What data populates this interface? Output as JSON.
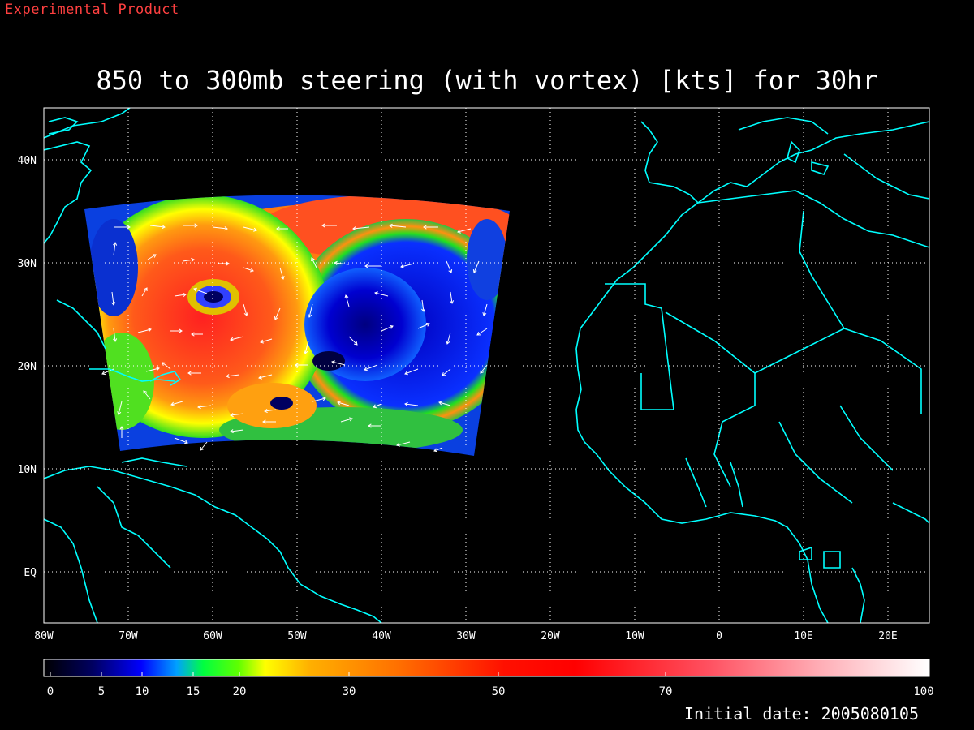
{
  "header": {
    "product_label": "Experimental Product",
    "title": "850 to 300mb steering (with vortex) [kts] for 30hr"
  },
  "map": {
    "lon_labels": [
      "80W",
      "70W",
      "60W",
      "50W",
      "40W",
      "30W",
      "20W",
      "10W",
      "0",
      "10E",
      "20E"
    ],
    "lat_labels": [
      "40N",
      "30N",
      "20N",
      "10N",
      "EQ"
    ],
    "coastline_color": "#00ffff",
    "grid_color": "#ffffff",
    "background_color": "#000000"
  },
  "colorbar": {
    "tick_labels": [
      "0",
      "5",
      "10",
      "15",
      "20",
      "30",
      "50",
      "70",
      "100"
    ],
    "units": "kts"
  },
  "footer": {
    "initial_date": "Initial date: 2005080105"
  }
}
